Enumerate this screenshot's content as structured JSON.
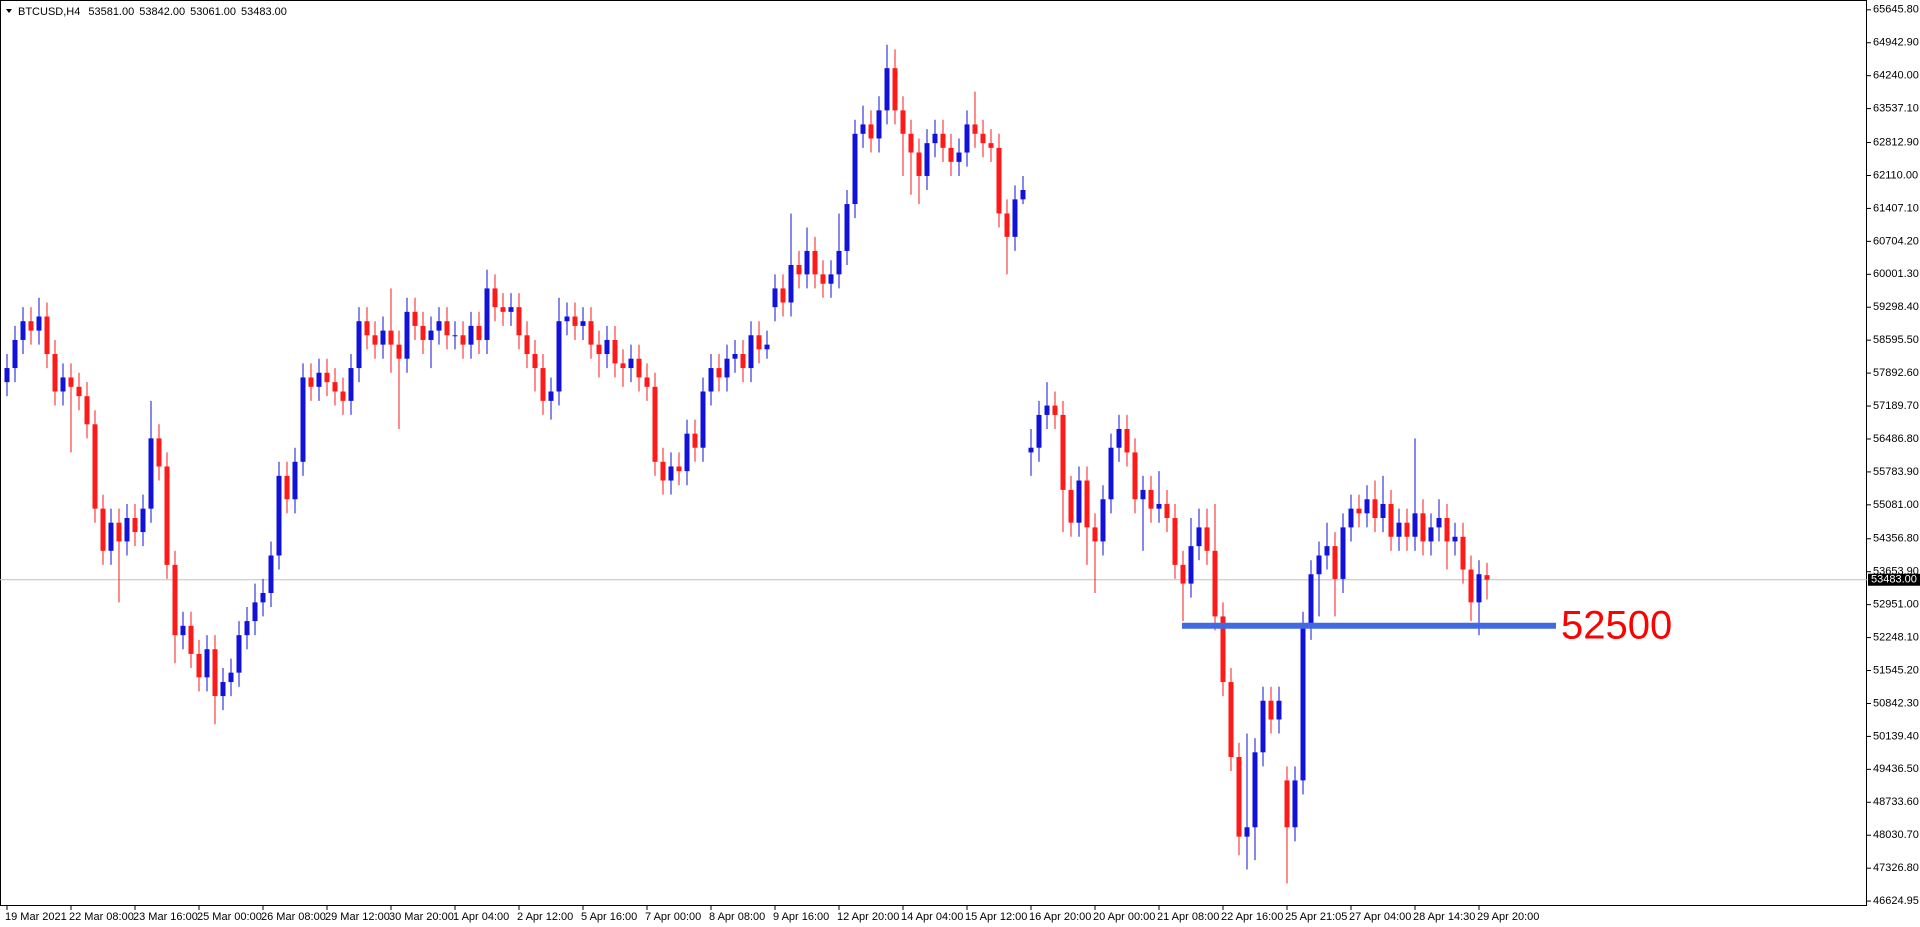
{
  "chart_data": {
    "type": "candlestick",
    "symbol": "BTCUSD,H4",
    "ohlc_labels": [
      "53581.00",
      "53842.00",
      "53061.00",
      "53483.00"
    ],
    "up_color": "#1212d8",
    "down_color": "#ff1a1a",
    "grid": false,
    "ylim": [
      46520,
      65855
    ],
    "yticks": [
      {
        "value": 65645.8,
        "label": "65645.80"
      },
      {
        "value": 64942.9,
        "label": "64942.90"
      },
      {
        "value": 64240,
        "label": "64240.00"
      },
      {
        "value": 63537.1,
        "label": "63537.10"
      },
      {
        "value": 62812.9,
        "label": "62812.90"
      },
      {
        "value": 62110,
        "label": "62110.00"
      },
      {
        "value": 61407.1,
        "label": "61407.10"
      },
      {
        "value": 60704.2,
        "label": "60704.20"
      },
      {
        "value": 60001.3,
        "label": "60001.30"
      },
      {
        "value": 59298.4,
        "label": "59298.40"
      },
      {
        "value": 58595.5,
        "label": "58595.50"
      },
      {
        "value": 57892.6,
        "label": "57892.60"
      },
      {
        "value": 57189.7,
        "label": "57189.70"
      },
      {
        "value": 56486.8,
        "label": "56486.80"
      },
      {
        "value": 55783.9,
        "label": "55783.90"
      },
      {
        "value": 55081,
        "label": "55081.00"
      },
      {
        "value": 54356.8,
        "label": "54356.80"
      },
      {
        "value": 53653.9,
        "label": "53653.90"
      },
      {
        "value": 52951,
        "label": "52951.00"
      },
      {
        "value": 52248.1,
        "label": "52248.10"
      },
      {
        "value": 51545.2,
        "label": "51545.20"
      },
      {
        "value": 50842.3,
        "label": "50842.30"
      },
      {
        "value": 50139.4,
        "label": "50139.40"
      },
      {
        "value": 49436.5,
        "label": "49436.50"
      },
      {
        "value": 48733.6,
        "label": "48733.60"
      },
      {
        "value": 48030.7,
        "label": "48030.70"
      },
      {
        "value": 47326.8,
        "label": "47326.80"
      },
      {
        "value": 46624.95,
        "label": "46624.95"
      }
    ],
    "bid": {
      "value": 53483,
      "label": "53483.00"
    },
    "level": 52500,
    "level_line_color": "#4169e1",
    "level_text_color": "#ff0000",
    "categories": [
      "19 Mar 2021",
      null,
      null,
      null,
      null,
      null,
      null,
      null,
      "22 Mar 08:00",
      null,
      null,
      null,
      null,
      null,
      null,
      null,
      "23 Mar 16:00",
      null,
      null,
      null,
      null,
      null,
      null,
      null,
      "25 Mar 00:00",
      null,
      null,
      null,
      null,
      null,
      null,
      null,
      "26 Mar 08:00",
      null,
      null,
      null,
      null,
      null,
      null,
      null,
      "29 Mar 12:00",
      null,
      null,
      null,
      null,
      null,
      null,
      null,
      "30 Mar 20:00",
      null,
      null,
      null,
      null,
      null,
      null,
      null,
      "1 Apr 04:00",
      null,
      null,
      null,
      null,
      null,
      null,
      null,
      "2 Apr 12:00",
      null,
      null,
      null,
      null,
      null,
      null,
      null,
      "5 Apr 16:00",
      null,
      null,
      null,
      null,
      null,
      null,
      null,
      "7 Apr 00:00",
      null,
      null,
      null,
      null,
      null,
      null,
      null,
      "8 Apr 08:00",
      null,
      null,
      null,
      null,
      null,
      null,
      null,
      "9 Apr 16:00",
      null,
      null,
      null,
      null,
      null,
      null,
      null,
      "12 Apr 20:00",
      null,
      null,
      null,
      null,
      null,
      null,
      null,
      "14 Apr 04:00",
      null,
      null,
      null,
      null,
      null,
      null,
      null,
      "15 Apr 12:00",
      null,
      null,
      null,
      null,
      null,
      null,
      null,
      "16 Apr 20:00",
      null,
      null,
      null,
      null,
      null,
      null,
      null,
      "20 Apr 00:00",
      null,
      null,
      null,
      null,
      null,
      null,
      null,
      "21 Apr 08:00",
      null,
      null,
      null,
      null,
      null,
      null,
      null,
      "22 Apr 16:00",
      null,
      null,
      null,
      null,
      null,
      null,
      null,
      "25 Apr 21:05",
      null,
      null,
      null,
      null,
      null,
      null,
      null,
      "27 Apr 04:00",
      null,
      null,
      null,
      null,
      null,
      null,
      null,
      "28 Apr 14:30",
      null,
      null,
      null,
      null,
      null,
      null,
      null,
      "29 Apr 20:00",
      null
    ],
    "open": [
      57700,
      58000,
      58600,
      59000,
      58800,
      59100,
      58300,
      57500,
      57800,
      57600,
      57400,
      56800,
      55000,
      54100,
      54700,
      54300,
      54800,
      54500,
      55000,
      56500,
      55900,
      53800,
      52300,
      52500,
      51900,
      51400,
      52000,
      51000,
      51300,
      51500,
      52300,
      52600,
      53000,
      53200,
      54000,
      55700,
      55200,
      56000,
      57800,
      57600,
      57900,
      57700,
      57500,
      57300,
      58000,
      59000,
      58700,
      58500,
      58800,
      58500,
      58200,
      59200,
      58900,
      58600,
      58800,
      59000,
      58700,
      58700,
      58500,
      58900,
      58600,
      59700,
      59300,
      59200,
      59300,
      58700,
      58300,
      58000,
      57300,
      57500,
      59000,
      59100,
      58900,
      59000,
      58500,
      58300,
      58600,
      58100,
      58000,
      58200,
      57800,
      57600,
      56000,
      55600,
      55900,
      55800,
      56600,
      56300,
      57500,
      58000,
      57800,
      58200,
      58300,
      58000,
      58700,
      58400,
      59300,
      59700,
      59400,
      60200,
      60000,
      60500,
      60000,
      59800,
      60000,
      60500,
      61500,
      63000,
      63200,
      62900,
      63500,
      64400,
      63500,
      63000,
      62600,
      62100,
      62800,
      63000,
      62700,
      62400,
      62600,
      63200,
      63000,
      62800,
      62700,
      61300,
      60800,
      61600,
      56200,
      56300,
      57000,
      57200,
      57000,
      55400,
      54700,
      55600,
      54600,
      54300,
      55200,
      56300,
      56700,
      56200,
      55200,
      55400,
      55000,
      55100,
      54800,
      53800,
      53400,
      54200,
      54600,
      54100,
      52700,
      51300,
      49700,
      48000,
      48200,
      49800,
      50900,
      50500,
      49200,
      48200,
      49200,
      52500,
      53600,
      54000,
      54200,
      53500,
      54600,
      55000,
      54900,
      55200,
      54800,
      55100,
      54400,
      54700,
      54400,
      54900,
      54300,
      54600,
      54800,
      54300,
      54400,
      53700,
      53000,
      53581
    ],
    "high": [
      58300,
      58900,
      59300,
      59300,
      59500,
      59400,
      58600,
      58100,
      58100,
      57900,
      57700,
      57100,
      55300,
      55000,
      55000,
      55100,
      55100,
      55300,
      57300,
      56800,
      56200,
      54100,
      52800,
      52800,
      52200,
      52300,
      52300,
      51600,
      51800,
      52600,
      52900,
      53400,
      53500,
      54300,
      56000,
      56000,
      56300,
      58100,
      58100,
      58200,
      58200,
      58000,
      57800,
      58300,
      59300,
      59300,
      59000,
      59100,
      59700,
      58800,
      59500,
      59500,
      59200,
      59100,
      59300,
      59300,
      59000,
      59000,
      59200,
      59200,
      60100,
      60000,
      59600,
      59600,
      59600,
      59000,
      58600,
      58300,
      57800,
      59500,
      59400,
      59400,
      59300,
      59300,
      58800,
      58900,
      58900,
      58400,
      58500,
      58500,
      58100,
      57900,
      56300,
      56200,
      56200,
      56900,
      56900,
      57800,
      58300,
      58300,
      58500,
      58600,
      58600,
      59000,
      59000,
      58800,
      60000,
      60000,
      61300,
      60500,
      61000,
      60800,
      60300,
      60300,
      61300,
      61800,
      63300,
      63600,
      63500,
      63800,
      64900,
      64800,
      63800,
      63300,
      62900,
      63100,
      63300,
      63300,
      63000,
      62900,
      63500,
      63900,
      63300,
      63100,
      63000,
      61600,
      61900,
      62100,
      56700,
      57300,
      57700,
      57500,
      57300,
      55700,
      55900,
      55900,
      54900,
      55500,
      56600,
      57000,
      57000,
      56500,
      55700,
      55700,
      55800,
      55400,
      55100,
      54100,
      54800,
      55000,
      55000,
      55100,
      53000,
      51600,
      50000,
      50200,
      50100,
      51200,
      51200,
      51200,
      49500,
      49500,
      52800,
      53900,
      54300,
      54700,
      54500,
      54900,
      55300,
      55300,
      55500,
      55600,
      55700,
      55400,
      55000,
      55000,
      56500,
      55200,
      54900,
      55200,
      55100,
      54700,
      54700,
      54000,
      53900,
      53842
    ],
    "low": [
      57400,
      57700,
      58300,
      58500,
      58500,
      58000,
      57200,
      57200,
      56200,
      57100,
      56500,
      54700,
      53800,
      53800,
      53000,
      54000,
      54200,
      54200,
      54700,
      55600,
      53500,
      51700,
      52000,
      51600,
      51100,
      51100,
      50400,
      50700,
      51000,
      51200,
      52000,
      52300,
      52700,
      52900,
      53700,
      54900,
      54900,
      55700,
      57300,
      57300,
      57400,
      57200,
      57000,
      57000,
      57700,
      58400,
      58200,
      58200,
      57900,
      56700,
      57900,
      58600,
      58300,
      58000,
      58500,
      58400,
      58400,
      58200,
      58200,
      58300,
      58300,
      59000,
      58900,
      58900,
      58400,
      58000,
      57500,
      57000,
      56900,
      57200,
      58700,
      58600,
      58600,
      58200,
      57800,
      58000,
      57800,
      57600,
      57700,
      57500,
      57300,
      55700,
      55300,
      55300,
      55500,
      55500,
      56000,
      56000,
      57200,
      57500,
      57500,
      57900,
      57700,
      57700,
      58100,
      58200,
      59000,
      59100,
      59100,
      59700,
      59700,
      59700,
      59500,
      59500,
      59700,
      60200,
      61200,
      62700,
      62600,
      62600,
      63200,
      63200,
      62100,
      61700,
      61500,
      61800,
      62500,
      62400,
      62100,
      62100,
      62300,
      62700,
      62500,
      62400,
      61000,
      60000,
      60500,
      61500,
      55700,
      56000,
      56700,
      56700,
      54500,
      54400,
      54400,
      53800,
      53200,
      54000,
      54900,
      56000,
      55900,
      54900,
      54100,
      54700,
      54700,
      54500,
      53500,
      52600,
      53100,
      53900,
      53800,
      52400,
      51000,
      49400,
      47600,
      47300,
      47500,
      49500,
      50200,
      50200,
      47000,
      47900,
      48900,
      52200,
      52700,
      53700,
      52700,
      53200,
      54300,
      54600,
      54600,
      54500,
      54500,
      54100,
      54100,
      54100,
      54100,
      54000,
      54000,
      54300,
      53700,
      54000,
      53400,
      52600,
      52300,
      53061
    ],
    "close": [
      58000,
      58600,
      59000,
      58800,
      59100,
      58300,
      57500,
      57800,
      57600,
      57400,
      56800,
      55000,
      54100,
      54700,
      54300,
      54800,
      54500,
      55000,
      56500,
      55900,
      53800,
      52300,
      52500,
      51900,
      51400,
      52000,
      51000,
      51300,
      51500,
      52300,
      52600,
      53000,
      53200,
      54000,
      55700,
      55200,
      56000,
      57800,
      57600,
      57900,
      57700,
      57500,
      57300,
      58000,
      59000,
      58700,
      58500,
      58800,
      58500,
      58200,
      59200,
      58900,
      58600,
      58800,
      59000,
      58700,
      58700,
      58500,
      58900,
      58600,
      59700,
      59300,
      59200,
      59300,
      58700,
      58300,
      58000,
      57300,
      57500,
      59000,
      59100,
      58900,
      59000,
      58500,
      58300,
      58600,
      58100,
      58000,
      58200,
      57800,
      57600,
      56000,
      55600,
      55900,
      55800,
      56600,
      56300,
      57500,
      58000,
      57800,
      58200,
      58300,
      58000,
      58700,
      58400,
      58500,
      59700,
      59400,
      60200,
      60000,
      60500,
      60000,
      59800,
      60000,
      60500,
      61500,
      63000,
      63200,
      62900,
      63500,
      64400,
      63500,
      63000,
      62600,
      62100,
      62800,
      63000,
      62700,
      62400,
      62600,
      63200,
      63000,
      62800,
      62700,
      61300,
      60800,
      61600,
      61800,
      56300,
      57000,
      57200,
      57000,
      55400,
      54700,
      55600,
      54600,
      54300,
      55200,
      56300,
      56700,
      56200,
      55200,
      55400,
      55000,
      55100,
      54800,
      53800,
      53400,
      54200,
      54600,
      54100,
      52700,
      51300,
      49700,
      48000,
      48200,
      49800,
      50900,
      50500,
      50900,
      48200,
      49200,
      52500,
      53600,
      54000,
      54200,
      53500,
      54600,
      55000,
      54900,
      55200,
      54800,
      55100,
      54400,
      54700,
      54400,
      54900,
      54300,
      54600,
      54800,
      54300,
      54400,
      53700,
      53000,
      53600,
      53483
    ]
  }
}
